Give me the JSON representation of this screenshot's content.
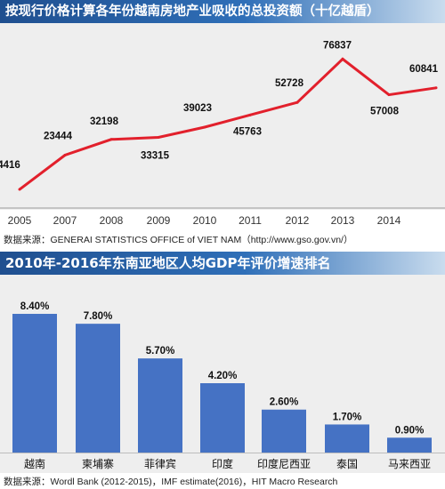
{
  "chart_data": [
    {
      "type": "line",
      "title": "按现行价格计算各年份越南房地产业吸收的总投资额（十亿越盾）",
      "x": [
        "2005",
        "2007",
        "2008",
        "2009",
        "2010",
        "2011",
        "2012",
        "2013",
        "2014",
        ""
      ],
      "x_tick_labels": [
        "2005",
        "2007",
        "2008",
        "2009",
        "2010",
        "2011",
        "2012",
        "2013",
        "2014"
      ],
      "series": [
        {
          "values": [
            4416,
            23444,
            32198,
            33315,
            39023,
            45763,
            52728,
            76837,
            57008,
            60841
          ],
          "labels": [
            "4416",
            "23444",
            "32198",
            "33315",
            "39023",
            "45763",
            "52728",
            "76837",
            "57008",
            "60841"
          ],
          "color": "#e2202c"
        }
      ],
      "ylim": [
        0,
        80000
      ],
      "grid": false,
      "source": "数据来源：GENERAI STATISTICS OFFICE of  VIET NAM（http://www.gso.gov.vn/）"
    },
    {
      "type": "bar",
      "title": "2010年-2016年东南亚地区人均GDP年评价增速排名",
      "categories": [
        "越南",
        "柬埔寨",
        "菲律宾",
        "印度",
        "印度尼西亚",
        "泰国",
        "马来西亚"
      ],
      "values": [
        8.4,
        7.8,
        5.7,
        4.2,
        2.6,
        1.7,
        0.9
      ],
      "value_labels": [
        "8.40%",
        "7.80%",
        "5.70%",
        "4.20%",
        "2.60%",
        "1.70%",
        "0.90%"
      ],
      "color": "#4572c4",
      "ylim": [
        0,
        10
      ],
      "grid": false,
      "source": "数据来源：Wordl Bank (2012-2015)，IMF estimate(2016)，HIT Macro Research"
    }
  ]
}
